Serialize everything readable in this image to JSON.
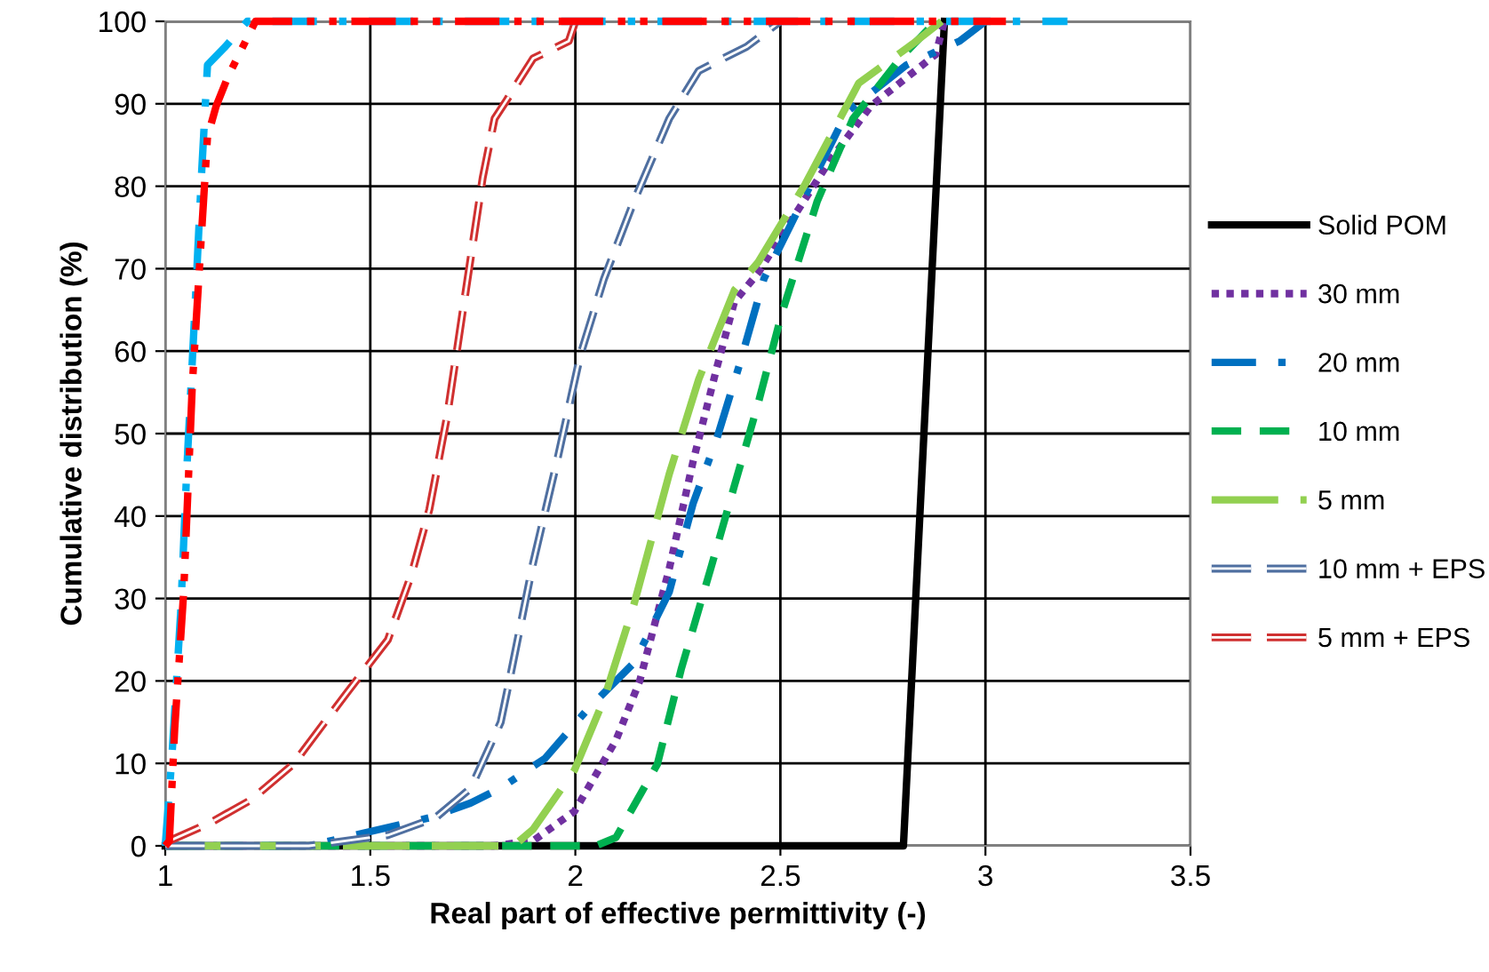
{
  "chart_data": {
    "type": "line",
    "xlabel": "Real part of effective permittivity (-)",
    "ylabel": "Cumulative distribution (%)",
    "xlim": [
      1,
      3.5
    ],
    "ylim": [
      0,
      100
    ],
    "xticks": [
      1,
      1.5,
      2,
      2.5,
      3,
      3.5
    ],
    "yticks": [
      0,
      10,
      20,
      30,
      40,
      50,
      60,
      70,
      80,
      90,
      100
    ],
    "grid": true,
    "legend": "right",
    "series": [
      {
        "name": "Solid POM",
        "color": "#000000",
        "line_style": "solid",
        "x": [
          1,
          2.8,
          2.9
        ],
        "values": [
          0,
          0,
          100
        ]
      },
      {
        "name": "30 mm",
        "color": "#7030a0",
        "line_style": "dotted",
        "x": [
          1,
          1.8,
          1.897,
          1.998,
          2.099,
          2.157,
          2.229,
          2.287,
          2.345,
          2.388,
          2.446,
          2.503,
          2.619,
          2.72,
          2.879,
          2.9
        ],
        "values": [
          0,
          0,
          0.6,
          4.2,
          12.8,
          20,
          33.6,
          46.6,
          58,
          66,
          69.5,
          74,
          83,
          89.7,
          96,
          100
        ]
      },
      {
        "name": "20 mm",
        "color": "#0070c0",
        "line_style": "dashdot",
        "x": [
          1,
          1.35,
          1.428,
          1.644,
          1.745,
          1.818,
          1.926,
          2.027,
          2.143,
          2.229,
          2.287,
          2.345,
          2.403,
          2.46,
          2.532,
          2.662,
          2.807,
          2.937,
          3.0
        ],
        "values": [
          0,
          0,
          0.9,
          3.4,
          5.2,
          7,
          10.6,
          16.4,
          22.2,
          30.8,
          41.5,
          49.4,
          58.8,
          68.8,
          76,
          89,
          94.7,
          97.6,
          100
        ]
      },
      {
        "name": "10 mm",
        "color": "#00b050",
        "line_style": "dashed",
        "x": [
          1,
          2.05,
          2.099,
          2.2,
          2.258,
          2.33,
          2.388,
          2.446,
          2.503,
          2.59,
          2.677,
          2.792,
          2.879
        ],
        "values": [
          0,
          0,
          1,
          9.9,
          21.4,
          33.6,
          43.7,
          53.7,
          64.5,
          78.2,
          88.2,
          95.5,
          100
        ]
      },
      {
        "name": "5 mm",
        "color": "#92d050",
        "line_style": "longdash",
        "x": [
          1,
          1.85,
          1.897,
          1.998,
          2.07,
          2.143,
          2.229,
          2.301,
          2.388,
          2.446,
          2.561,
          2.691,
          2.821,
          2.893
        ],
        "values": [
          0,
          0,
          2,
          9.2,
          17.8,
          29.3,
          45.1,
          56.6,
          67.4,
          70.8,
          80.3,
          92.5,
          97.2,
          100
        ]
      },
      {
        "name": "10 mm + EPS",
        "color": "#4f6fa0",
        "line_style": "doubledash",
        "x": [
          1,
          1.35,
          1.543,
          1.659,
          1.745,
          1.818,
          1.839,
          1.897,
          1.955,
          2.012,
          2.07,
          2.143,
          2.229,
          2.301,
          2.417,
          2.5
        ],
        "values": [
          0,
          0,
          1.3,
          3.4,
          7,
          15,
          20,
          34.3,
          46.6,
          59.5,
          68.8,
          78.2,
          88.2,
          94,
          96.9,
          100
        ]
      },
      {
        "name": "5 mm + EPS",
        "color": "#d03030",
        "line_style": "doubledash",
        "x": [
          1,
          1.01,
          1.11,
          1.21,
          1.312,
          1.442,
          1.543,
          1.601,
          1.644,
          1.688,
          1.731,
          1.774,
          1.803,
          1.832,
          1.897,
          1.984,
          2.0
        ],
        "values": [
          0,
          0.6,
          2.8,
          5.6,
          9.9,
          18.5,
          25,
          33,
          40.8,
          52.3,
          66.7,
          81,
          88.2,
          90.4,
          95.5,
          97.6,
          100
        ]
      },
      {
        "color": "#00b0f0",
        "line_style": "dashdot",
        "x": [
          1,
          1.016,
          1.038,
          1.052,
          1.074,
          1.088,
          1.103,
          1.146,
          1.2,
          3.2
        ],
        "values": [
          0,
          10.6,
          28.6,
          45.1,
          66.7,
          81,
          94.7,
          96.9,
          100,
          100
        ]
      },
      {
        "color": "#ff0000",
        "line_style": "dashdotdot",
        "x": [
          1,
          1.01,
          1.023,
          1.045,
          1.066,
          1.088,
          1.103,
          1.124,
          1.153,
          1.196,
          1.22,
          3.05
        ],
        "values": [
          0,
          0.6,
          14.2,
          30.8,
          55.9,
          73.9,
          86,
          89.7,
          93.3,
          97.6,
          100,
          100
        ]
      }
    ]
  }
}
